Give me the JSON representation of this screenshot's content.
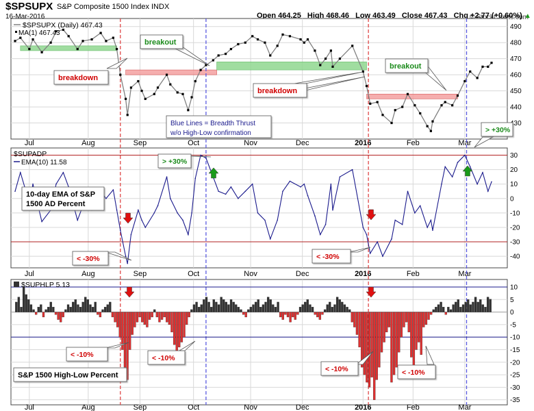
{
  "header": {
    "symbol": "$SPSUPX",
    "name": "S&P Composite 1500 Index INDX",
    "date": "16-Mar-2016",
    "open": "Open 464.25",
    "high": "High 468.46",
    "low": "Low 463.49",
    "close": "Close 467.43",
    "chg": "Chg +2.77 (+0.60%)",
    "chg_arrow": "▲",
    "credit": "© StockCharts.com"
  },
  "colors": {
    "price_line": "#808080",
    "ema_line": "#1a1a8c",
    "bar_pos": "#333333",
    "bar_neg": "#e03030",
    "red_ref": "#b22222",
    "navy_ref": "#1a1a8c",
    "up_arrow": "#1a9a1a",
    "down_arrow": "#e01010",
    "support": "#90d890",
    "resistance": "#f4a0a0",
    "grid": "#d8d8d8"
  },
  "chart_data": [
    {
      "type": "line",
      "panel": "price",
      "legend": [
        "$SPSUPX (Daily) 467.43",
        "MA(1) 467.43"
      ],
      "ylim": [
        420,
        495
      ],
      "yticks": [
        430,
        440,
        450,
        460,
        470,
        480,
        490
      ],
      "x_start": "2015-06-23",
      "x_end": "2016-03-16",
      "series": [
        {
          "name": "$SPSUPX (Daily) 467.43",
          "points": [
            [
              "2015-06-23",
              481
            ],
            [
              "2015-06-26",
              483
            ],
            [
              "2015-07-01",
              476
            ],
            [
              "2015-07-03",
              482
            ],
            [
              "2015-07-08",
              474
            ],
            [
              "2015-07-13",
              480
            ],
            [
              "2015-07-16",
              487
            ],
            [
              "2015-07-20",
              488
            ],
            [
              "2015-07-23",
              484
            ],
            [
              "2015-07-28",
              476
            ],
            [
              "2015-07-31",
              481
            ],
            [
              "2015-08-05",
              482
            ],
            [
              "2015-08-10",
              486
            ],
            [
              "2015-08-13",
              481
            ],
            [
              "2015-08-17",
              483
            ],
            [
              "2015-08-19",
              476
            ],
            [
              "2015-08-21",
              460
            ],
            [
              "2015-08-24",
              445
            ],
            [
              "2015-08-25",
              435
            ],
            [
              "2015-08-27",
              452
            ],
            [
              "2015-08-31",
              456
            ],
            [
              "2015-09-02",
              450
            ],
            [
              "2015-09-04",
              445
            ],
            [
              "2015-09-09",
              448
            ],
            [
              "2015-09-11",
              452
            ],
            [
              "2015-09-16",
              460
            ],
            [
              "2015-09-18",
              454
            ],
            [
              "2015-09-22",
              449
            ],
            [
              "2015-09-25",
              448
            ],
            [
              "2015-09-28",
              438
            ],
            [
              "2015-09-30",
              446
            ],
            [
              "2015-10-02",
              456
            ],
            [
              "2015-10-05",
              463
            ],
            [
              "2015-10-08",
              466
            ],
            [
              "2015-10-12",
              469
            ],
            [
              "2015-10-15",
              472
            ],
            [
              "2015-10-19",
              473
            ],
            [
              "2015-10-22",
              476
            ],
            [
              "2015-10-26",
              479
            ],
            [
              "2015-10-30",
              480
            ],
            [
              "2015-11-03",
              484
            ],
            [
              "2015-11-06",
              482
            ],
            [
              "2015-11-10",
              480
            ],
            [
              "2015-11-13",
              472
            ],
            [
              "2015-11-17",
              478
            ],
            [
              "2015-11-20",
              485
            ],
            [
              "2015-11-24",
              484
            ],
            [
              "2015-11-30",
              482
            ],
            [
              "2015-12-02",
              480
            ],
            [
              "2015-12-04",
              482
            ],
            [
              "2015-12-08",
              475
            ],
            [
              "2015-12-11",
              466
            ],
            [
              "2015-12-14",
              470
            ],
            [
              "2015-12-17",
              475
            ],
            [
              "2015-12-18",
              465
            ],
            [
              "2015-12-22",
              470
            ],
            [
              "2015-12-29",
              478
            ],
            [
              "2016-01-04",
              462
            ],
            [
              "2016-01-06",
              453
            ],
            [
              "2016-01-08",
              442
            ],
            [
              "2016-01-12",
              443
            ],
            [
              "2016-01-15",
              435
            ],
            [
              "2016-01-20",
              430
            ],
            [
              "2016-01-22",
              438
            ],
            [
              "2016-01-26",
              440
            ],
            [
              "2016-01-29",
              448
            ],
            [
              "2016-02-02",
              441
            ],
            [
              "2016-02-05",
              436
            ],
            [
              "2016-02-09",
              428
            ],
            [
              "2016-02-11",
              425
            ],
            [
              "2016-02-12",
              431
            ],
            [
              "2016-02-17",
              441
            ],
            [
              "2016-02-19",
              443
            ],
            [
              "2016-02-23",
              441
            ],
            [
              "2016-02-26",
              447
            ],
            [
              "2016-03-01",
              456
            ],
            [
              "2016-03-04",
              462
            ],
            [
              "2016-03-08",
              458
            ],
            [
              "2016-03-11",
              465
            ],
            [
              "2016-03-14",
              465
            ],
            [
              "2016-03-16",
              467.43
            ]
          ]
        }
      ]
    },
    {
      "type": "line",
      "panel": "breadth",
      "legend": [
        "$SUPADP",
        "EMA(10) 11.58"
      ],
      "ylim": [
        -48,
        35
      ],
      "yticks": [
        -40,
        -30,
        -20,
        -10,
        0,
        10,
        20,
        30
      ],
      "reference_levels": [
        30,
        -30
      ],
      "series": [
        {
          "name": "EMA(10) 11.58",
          "points": [
            [
              "2015-06-23",
              5
            ],
            [
              "2015-06-26",
              18
            ],
            [
              "2015-07-01",
              -3
            ],
            [
              "2015-07-03",
              10
            ],
            [
              "2015-07-08",
              -16
            ],
            [
              "2015-07-13",
              -8
            ],
            [
              "2015-07-16",
              10
            ],
            [
              "2015-07-20",
              18
            ],
            [
              "2015-07-23",
              8
            ],
            [
              "2015-07-28",
              -15
            ],
            [
              "2015-07-31",
              -5
            ],
            [
              "2015-08-05",
              -8
            ],
            [
              "2015-08-10",
              5
            ],
            [
              "2015-08-13",
              0
            ],
            [
              "2015-08-17",
              6
            ],
            [
              "2015-08-19",
              -8
            ],
            [
              "2015-08-21",
              -22
            ],
            [
              "2015-08-24",
              -40
            ],
            [
              "2015-08-25",
              -45
            ],
            [
              "2015-08-27",
              -25
            ],
            [
              "2015-08-31",
              -8
            ],
            [
              "2015-09-02",
              -15
            ],
            [
              "2015-09-04",
              -20
            ],
            [
              "2015-09-09",
              -10
            ],
            [
              "2015-09-11",
              -5
            ],
            [
              "2015-09-16",
              15
            ],
            [
              "2015-09-18",
              0
            ],
            [
              "2015-09-22",
              -10
            ],
            [
              "2015-09-25",
              -15
            ],
            [
              "2015-09-28",
              -25
            ],
            [
              "2015-09-30",
              -10
            ],
            [
              "2015-10-02",
              14
            ],
            [
              "2015-10-05",
              30
            ],
            [
              "2015-10-08",
              28
            ],
            [
              "2015-10-12",
              15
            ],
            [
              "2015-10-15",
              5
            ],
            [
              "2015-10-19",
              3
            ],
            [
              "2015-10-22",
              8
            ],
            [
              "2015-10-26",
              0
            ],
            [
              "2015-10-30",
              5
            ],
            [
              "2015-11-03",
              10
            ],
            [
              "2015-11-06",
              -10
            ],
            [
              "2015-11-10",
              -15
            ],
            [
              "2015-11-13",
              -28
            ],
            [
              "2015-11-17",
              -15
            ],
            [
              "2015-11-20",
              5
            ],
            [
              "2015-11-24",
              12
            ],
            [
              "2015-11-30",
              8
            ],
            [
              "2015-12-02",
              10
            ],
            [
              "2015-12-04",
              2
            ],
            [
              "2015-12-08",
              -12
            ],
            [
              "2015-12-11",
              -25
            ],
            [
              "2015-12-14",
              -18
            ],
            [
              "2015-12-17",
              10
            ],
            [
              "2015-12-18",
              -8
            ],
            [
              "2015-12-22",
              15
            ],
            [
              "2015-12-29",
              20
            ],
            [
              "2016-01-04",
              -20
            ],
            [
              "2016-01-06",
              -25
            ],
            [
              "2016-01-08",
              -38
            ],
            [
              "2016-01-12",
              -30
            ],
            [
              "2016-01-15",
              -40
            ],
            [
              "2016-01-20",
              -28
            ],
            [
              "2016-01-22",
              -15
            ],
            [
              "2016-01-26",
              -18
            ],
            [
              "2016-01-29",
              5
            ],
            [
              "2016-02-02",
              -10
            ],
            [
              "2016-02-05",
              -5
            ],
            [
              "2016-02-09",
              -20
            ],
            [
              "2016-02-11",
              -15
            ],
            [
              "2016-02-12",
              -22
            ],
            [
              "2016-02-17",
              10
            ],
            [
              "2016-02-19",
              22
            ],
            [
              "2016-02-23",
              15
            ],
            [
              "2016-02-26",
              25
            ],
            [
              "2016-03-01",
              30
            ],
            [
              "2016-03-04",
              22
            ],
            [
              "2016-03-08",
              10
            ],
            [
              "2016-03-11",
              18
            ],
            [
              "2016-03-14",
              5
            ],
            [
              "2016-03-16",
              11.58
            ]
          ]
        }
      ]
    },
    {
      "type": "bar",
      "panel": "high-low",
      "legend": [
        "$SUPHLP 5.13"
      ],
      "ylim": [
        -37,
        13
      ],
      "yticks": [
        -35,
        -30,
        -25,
        -20,
        -15,
        -10,
        -5,
        0,
        5,
        10
      ],
      "reference_levels": [
        10,
        -10
      ],
      "values": [
        4,
        6,
        2,
        10,
        7,
        5,
        3,
        1,
        -1,
        2,
        3,
        -2,
        1,
        2,
        4,
        2,
        -1,
        -3,
        -4,
        -2,
        1,
        3,
        2,
        4,
        5,
        3,
        2,
        4,
        6,
        5,
        3,
        2,
        4,
        -1,
        -2,
        1,
        2,
        3,
        4,
        -2,
        -4,
        -6,
        -10,
        -15,
        -22,
        -27,
        -15,
        -9,
        -6,
        -4,
        -2,
        -4,
        -5,
        -6,
        -3,
        -2,
        1,
        -2,
        -4,
        -3,
        -2,
        -4,
        -5,
        -8,
        -13,
        -16,
        -14,
        -12,
        -10,
        -5,
        -2,
        1,
        3,
        4,
        2,
        3,
        5,
        6,
        4,
        2,
        5,
        4,
        3,
        6,
        5,
        4,
        3,
        5,
        4,
        3,
        2,
        1,
        -1,
        -2,
        1,
        2,
        3,
        4,
        5,
        2,
        3,
        4,
        6,
        5,
        3,
        2,
        4,
        -2,
        -3,
        -1,
        -2,
        -4,
        -2,
        -3,
        -1,
        2,
        3,
        4,
        5,
        3,
        2,
        -1,
        -2,
        -3,
        -1,
        1,
        3,
        4,
        2,
        3,
        6,
        5,
        4,
        3,
        2,
        1,
        -4,
        -6,
        -9,
        -14,
        -22,
        -25,
        -28,
        -30,
        -26,
        -35,
        -27,
        -22,
        -16,
        -12,
        -8,
        -6,
        -28,
        -25,
        -22,
        -16,
        -10,
        -6,
        -4,
        -8,
        -18,
        -22,
        -15,
        -12,
        -17,
        -6,
        -5,
        -3,
        -1,
        1,
        2,
        3,
        4,
        2,
        -1,
        2,
        1,
        3,
        4,
        5,
        2,
        3,
        4,
        5,
        3,
        4,
        6,
        4,
        5,
        3,
        2,
        6,
        5.13
      ]
    }
  ],
  "x_labels": [
    {
      "text": "Jul",
      "date": "2015-07-01",
      "bold": false
    },
    {
      "text": "Aug",
      "date": "2015-08-03",
      "bold": false
    },
    {
      "text": "Sep",
      "date": "2015-09-01",
      "bold": false
    },
    {
      "text": "Oct",
      "date": "2015-10-01",
      "bold": false
    },
    {
      "text": "Nov",
      "date": "2015-11-02",
      "bold": false
    },
    {
      "text": "Dec",
      "date": "2015-12-01",
      "bold": false
    },
    {
      "text": "2016",
      "date": "2016-01-04",
      "bold": true
    },
    {
      "text": "Feb",
      "date": "2016-02-01",
      "bold": false
    },
    {
      "text": "Mar",
      "date": "2016-03-01",
      "bold": false
    }
  ],
  "vertical_markers": [
    {
      "date": "2015-08-21",
      "color": "#e04848"
    },
    {
      "date": "2015-10-08",
      "color": "#5a5ae0"
    },
    {
      "date": "2016-01-07",
      "color": "#e04848"
    },
    {
      "date": "2016-03-02",
      "color": "#5a5ae0"
    }
  ],
  "zones": [
    {
      "kind": "support",
      "from": "2015-06-26",
      "to": "2015-08-19",
      "low": 475,
      "high": 478
    },
    {
      "kind": "resistance",
      "from": "2015-08-24",
      "to": "2015-10-14",
      "low": 460,
      "high": 463
    },
    {
      "kind": "support",
      "from": "2015-10-14",
      "to": "2016-01-06",
      "low": 463,
      "high": 468
    },
    {
      "kind": "resistance",
      "from": "2016-01-06",
      "to": "2016-02-26",
      "low": 445,
      "high": 448
    }
  ],
  "annotations": {
    "breakdown1": "breakdown",
    "breakout1": "breakout",
    "breakdown2": "breakdown",
    "breakout2": "breakout",
    "blue_note_line1": "Blue Lines = Breadth Thrust",
    "blue_note_line2": "w/o High-Low confirmation",
    "plus30_a": "> +30%",
    "plus30_b": "> +30%",
    "ema_note_line1": "10-day EMA of S&P",
    "ema_note_line2": "1500 AD Percent",
    "minus30_a": "< -30%",
    "minus30_b": "< -30%",
    "hl_note": "S&P 1500 High-Low Percent",
    "minus10_a": "< -10%",
    "minus10_b": "< -10%",
    "minus10_c": "< -10%",
    "minus10_d": "< -10%"
  }
}
